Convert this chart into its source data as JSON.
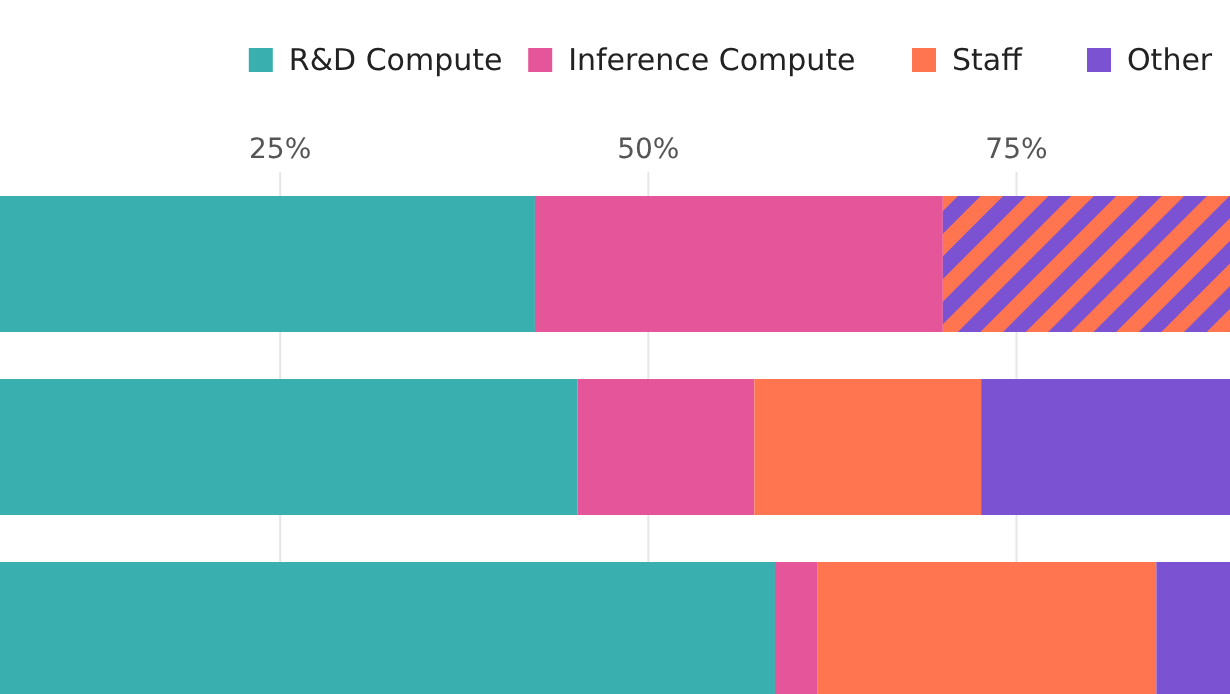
{
  "chart_data": {
    "type": "bar",
    "orientation": "horizontal",
    "stacked": true,
    "categories": [
      null,
      null,
      null
    ],
    "series": [
      {
        "name": "R&D Compute",
        "color": "#3aafb0",
        "values": [
          42.3,
          45.2,
          58.6
        ]
      },
      {
        "name": "Inference Compute",
        "color": "#e5559a",
        "values": [
          27.7,
          12.0,
          2.9
        ]
      },
      {
        "name": "Staff",
        "color": "#ff7550",
        "values": [
          null,
          15.4,
          23.0
        ]
      },
      {
        "name": "Other",
        "color": "#7b52d1",
        "values": [
          null,
          16.9,
          5.0
        ]
      },
      {
        "color": "#ff7550",
        "values": [
          19.5,
          null,
          null
        ]
      }
    ],
    "xlim": [
      0,
      89.5
    ],
    "xticks": [
      {
        "value": 25,
        "label": "25%"
      },
      {
        "value": 50,
        "label": "50%"
      },
      {
        "value": 75,
        "label": "75%"
      }
    ],
    "grid": "x",
    "legend": "top right"
  }
}
